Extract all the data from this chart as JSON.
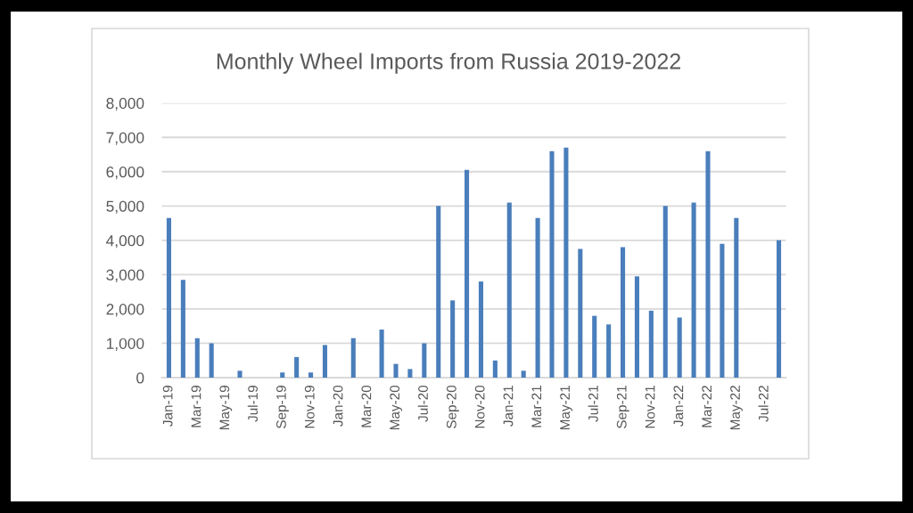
{
  "chart_data": {
    "type": "bar",
    "title": "Monthly Wheel Imports from Russia 2019-2022",
    "categories": [
      "Jan-19",
      null,
      "Mar-19",
      null,
      "May-19",
      null,
      "Jul-19",
      null,
      "Sep-19",
      null,
      "Nov-19",
      null,
      "Jan-20",
      null,
      "Mar-20",
      null,
      "May-20",
      null,
      "Jul-20",
      null,
      "Sep-20",
      null,
      "Nov-20",
      null,
      "Jan-21",
      null,
      "Mar-21",
      null,
      "May-21",
      null,
      "Jul-21",
      null,
      "Sep-21",
      null,
      "Nov-21",
      null,
      "Jan-22",
      null,
      "Mar-22",
      null,
      "May-22",
      null,
      "Jul-22",
      null
    ],
    "values": [
      4650,
      2850,
      1150,
      1000,
      null,
      200,
      null,
      null,
      150,
      600,
      150,
      950,
      null,
      1150,
      null,
      1400,
      400,
      250,
      1000,
      5000,
      2250,
      6050,
      2800,
      500,
      5100,
      200,
      4650,
      6600,
      6700,
      3750,
      1800,
      1550,
      3800,
      2950,
      1950,
      5000,
      1750,
      5100,
      6600,
      3900,
      4650,
      null,
      null,
      4000
    ],
    "color": "#4a7ebb",
    "ylim": [
      0,
      8000
    ],
    "yticks": [
      0,
      {
        "value": 1000,
        "label": "1,000"
      },
      {
        "value": 2000,
        "label": "2,000"
      },
      {
        "value": 3000,
        "label": "3,000"
      },
      {
        "value": 4000,
        "label": "4,000"
      },
      {
        "value": 5000,
        "label": "5,000"
      },
      {
        "value": 6000,
        "label": "6,000"
      },
      {
        "value": 7000,
        "label": "7,000"
      },
      {
        "value": 8000,
        "label": "8,000"
      }
    ],
    "grid": "y"
  }
}
